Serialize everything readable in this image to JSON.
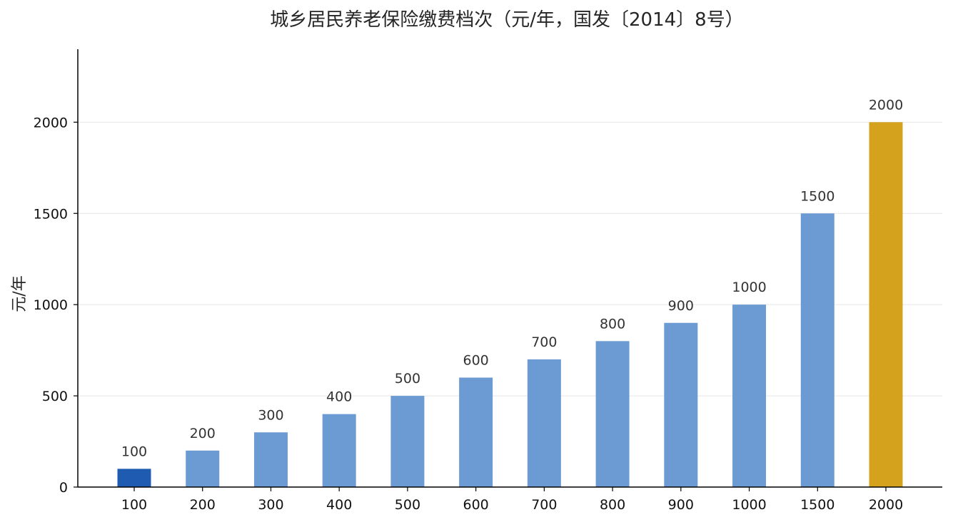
{
  "chart_data": {
    "type": "bar",
    "title": "城乡居民养老保险缴费档次（元/年，国发〔2014〕8号）",
    "xlabel": "",
    "ylabel": "元/年",
    "categories": [
      "100",
      "200",
      "300",
      "400",
      "500",
      "600",
      "700",
      "800",
      "900",
      "1000",
      "1500",
      "2000"
    ],
    "values": [
      100,
      200,
      300,
      400,
      500,
      600,
      700,
      800,
      900,
      1000,
      1500,
      2000
    ],
    "data_labels": [
      "100",
      "200",
      "300",
      "400",
      "500",
      "600",
      "700",
      "800",
      "900",
      "1000",
      "1500",
      "2000"
    ],
    "ylim": [
      0,
      2400
    ],
    "yticks": [
      0,
      500,
      1000,
      1500,
      2000
    ],
    "ytick_labels": [
      "0",
      "500",
      "1000",
      "1500",
      "2000"
    ],
    "grid": "horizontal",
    "legend": "none",
    "colors": {
      "default": "#6b9bd2",
      "lowest": "#1f5bb0",
      "highest": "#d4a21c"
    },
    "bar_colors": [
      "#1f5bb0",
      "#6b9bd2",
      "#6b9bd2",
      "#6b9bd2",
      "#6b9bd2",
      "#6b9bd2",
      "#6b9bd2",
      "#6b9bd2",
      "#6b9bd2",
      "#6b9bd2",
      "#6b9bd2",
      "#d4a21c"
    ]
  }
}
